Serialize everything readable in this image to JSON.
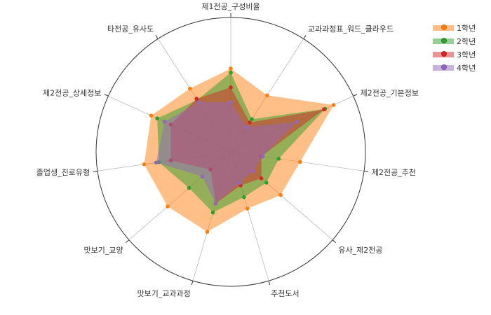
{
  "chart_data": {
    "type": "radar",
    "title": "",
    "rlim": [
      0,
      10
    ],
    "grid": "outer-circle",
    "legend_position": "top-right",
    "axes": [
      "제1전공_구성비율",
      "교과과정표_워드_클라우드",
      "제2전공_기본정보",
      "제2전공_추천",
      "유사_제2전공",
      "추천도서",
      "맛보기_교과과정",
      "맛보기_교양",
      "졸업생_진로유형",
      "제2전공_상세정보",
      "타전공_유사도"
    ],
    "series": [
      {
        "name": "1학년",
        "color": "#ff7f0e",
        "values": [
          6.2,
          5.0,
          8.4,
          5.2,
          4.9,
          4.4,
          6.2,
          6.2,
          6.5,
          6.5,
          5.6
        ]
      },
      {
        "name": "2학년",
        "color": "#2ca02c",
        "values": [
          5.9,
          2.9,
          7.7,
          3.6,
          3.5,
          3.5,
          4.7,
          4.1,
          5.4,
          6.0,
          4.6
        ]
      },
      {
        "name": "3학년",
        "color": "#d62728",
        "values": [
          4.8,
          2.6,
          7.6,
          2.3,
          3.0,
          2.6,
          4.0,
          2.0,
          4.5,
          4.9,
          4.7
        ]
      },
      {
        "name": "4학년",
        "color": "#9467bd",
        "values": [
          3.7,
          2.2,
          5.4,
          2.4,
          2.2,
          2.4,
          4.0,
          2.8,
          5.6,
          5.4,
          4.4
        ]
      }
    ]
  }
}
